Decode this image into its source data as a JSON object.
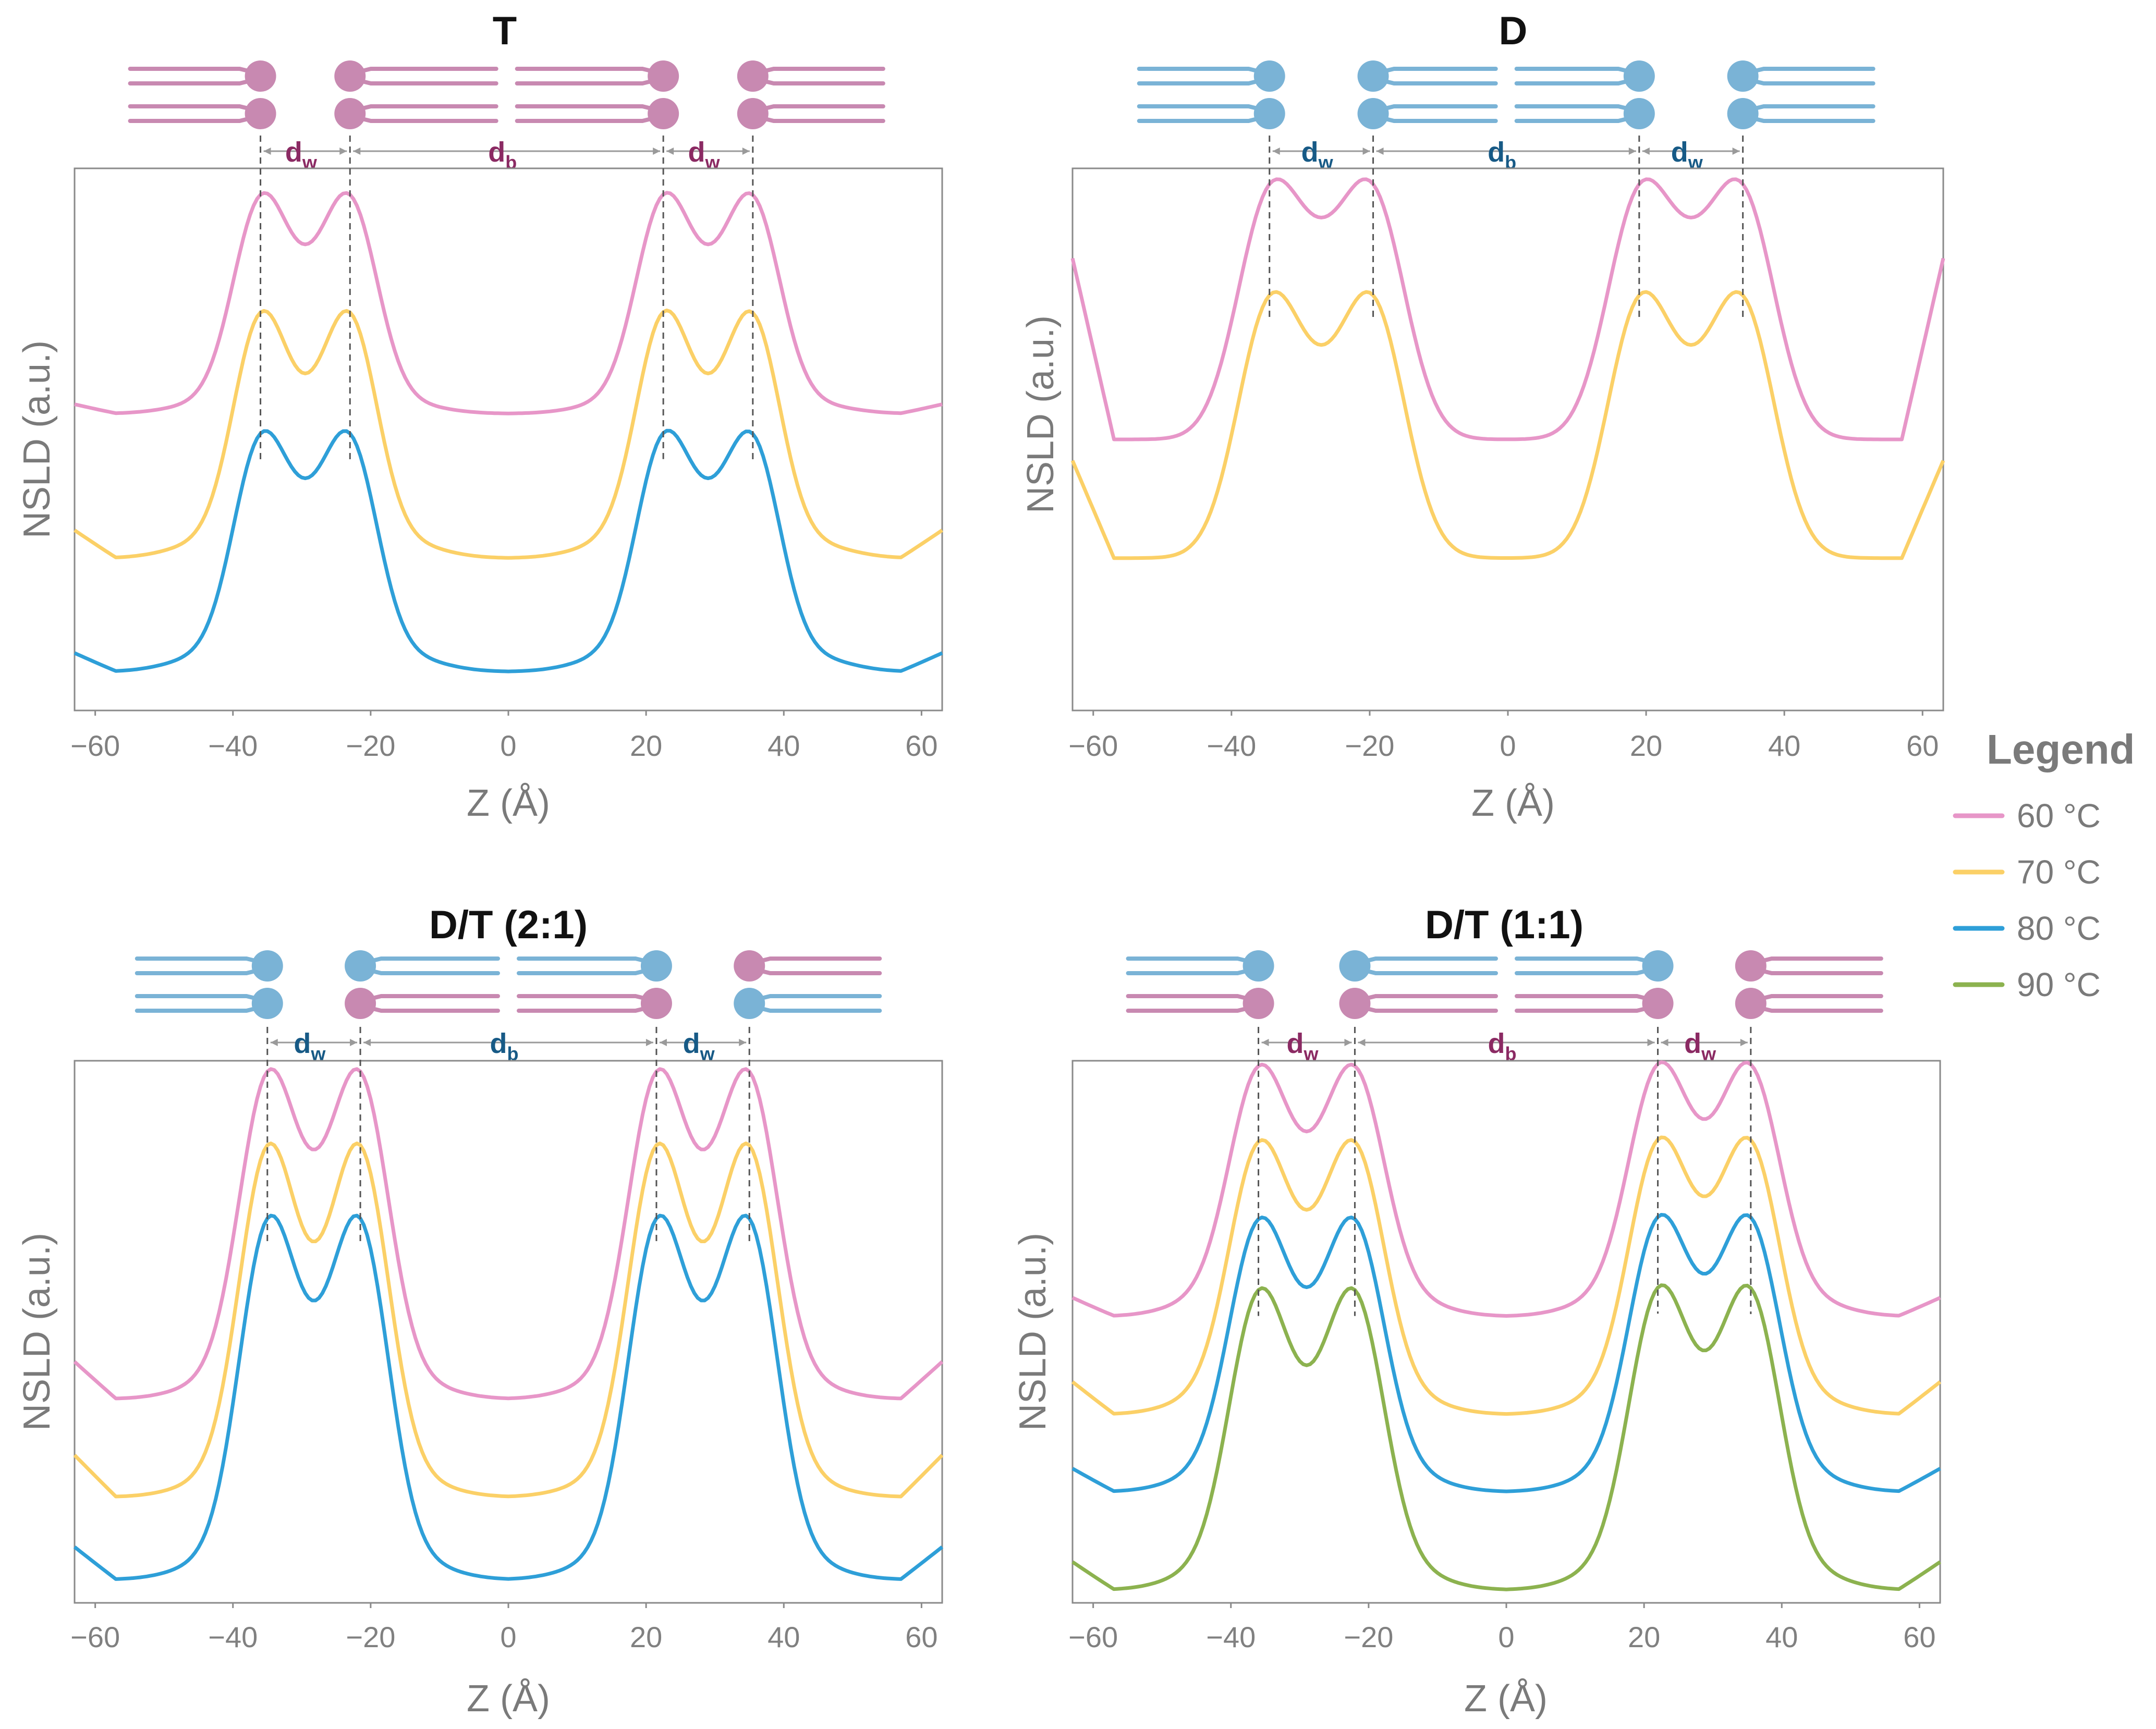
{
  "colors": {
    "c60": "#e796c8",
    "c70": "#fbd067",
    "c80": "#2e9fd8",
    "c90": "#8cb24f",
    "axis": "#8a8a8a",
    "T": "#c889b1",
    "D": "#7ab3d6",
    "dimT": "#8b2a63",
    "dimD": "#175a86"
  },
  "legend": {
    "title": "Legend",
    "entries": [
      {
        "label": "60 °C",
        "color": "#e796c8"
      },
      {
        "label": "70 °C",
        "color": "#fbd067"
      },
      {
        "label": "80 °C",
        "color": "#2e9fd8"
      },
      {
        "label": "90 °C",
        "color": "#8cb24f"
      }
    ]
  },
  "chart_data": [
    {
      "type": "line",
      "title": "T",
      "xlabel": "Z (Å)",
      "ylabel": "NSLD (a.u.)",
      "xlim": [
        -63,
        63
      ],
      "ylim": [
        0,
        100
      ],
      "xticks": [
        "−60",
        "−40",
        "−20",
        "0",
        "20",
        "40",
        "60"
      ],
      "xtick_values": [
        -60,
        -40,
        -20,
        0,
        20,
        40,
        60
      ],
      "dimension_labels": {
        "dw": "d",
        "dw_sub": "w",
        "db": "d",
        "db_sub": "b",
        "color": "dimT"
      },
      "head_positions": [
        -36,
        -23,
        22.5,
        35.5
      ],
      "series": [
        {
          "name": "60 °C",
          "color": "#e796c8",
          "peak": 95,
          "dip": 89,
          "min_center": 55,
          "min_outer": 55,
          "shoulder": 61,
          "end": 57
        },
        {
          "name": "70 °C",
          "color": "#fbd067",
          "peak": 72,
          "dip": 64,
          "min_center": 27,
          "min_outer": 27,
          "shoulder": 36,
          "end": 33
        },
        {
          "name": "80 °C",
          "color": "#2e9fd8",
          "peak": 48,
          "dip": 44,
          "min_center": 5,
          "min_outer": 5,
          "shoulder": 14,
          "end": 9
        }
      ]
    },
    {
      "type": "line",
      "title": "D",
      "xlabel": "Z (Å)",
      "ylabel": "NSLD (a.u.)",
      "xlim": [
        -63,
        63
      ],
      "ylim": [
        0,
        100
      ],
      "xticks": [
        "−60",
        "−40",
        "−20",
        "0",
        "20",
        "40",
        "60"
      ],
      "xtick_values": [
        -60,
        -40,
        -20,
        0,
        20,
        40,
        60
      ],
      "dimension_labels": {
        "dw": "d",
        "dw_sub": "w",
        "db": "d",
        "db_sub": "b",
        "color": "dimD"
      },
      "head_positions": [
        -34.5,
        -19.5,
        19,
        34
      ],
      "series": [
        {
          "name": "60 °C",
          "color": "#e796c8",
          "peak": 96,
          "dip": 95,
          "min_center": 50,
          "min_outer": 50,
          "shoulder": 50,
          "end": 89
        },
        {
          "name": "70 °C",
          "color": "#fbd067",
          "peak": 75,
          "dip": 70,
          "min_center": 27,
          "min_outer": 27,
          "shoulder": 27,
          "end": 48
        }
      ]
    },
    {
      "type": "line",
      "title": "D/T (2:1)",
      "xlabel": "Z (Å)",
      "ylabel": "NSLD (a.u.)",
      "xlim": [
        -63,
        63
      ],
      "ylim": [
        0,
        100
      ],
      "xticks": [
        "−60",
        "−40",
        "−20",
        "0",
        "20",
        "40",
        "60"
      ],
      "xtick_values": [
        -60,
        -40,
        -20,
        0,
        20,
        40,
        60
      ],
      "dimension_labels": {
        "dw": "d",
        "dw_sub": "w",
        "db": "d",
        "db_sub": "b",
        "color": "dimD"
      },
      "head_positions": [
        -35,
        -21.5,
        21.5,
        35
      ],
      "series": [
        {
          "name": "60 °C",
          "color": "#e796c8",
          "peak": 97,
          "dip": 87,
          "min_center": 37,
          "min_outer": 37,
          "shoulder": 46,
          "end": 45
        },
        {
          "name": "70 °C",
          "color": "#fbd067",
          "peak": 83,
          "dip": 69,
          "min_center": 18,
          "min_outer": 18,
          "shoulder": 27,
          "end": 27
        },
        {
          "name": "80 °C",
          "color": "#2e9fd8",
          "peak": 68,
          "dip": 58,
          "min_center": 2,
          "min_outer": 2,
          "shoulder": 12,
          "end": 9
        }
      ]
    },
    {
      "type": "line",
      "title": "D/T (1:1)",
      "xlabel": "Z (Å)",
      "ylabel": "NSLD (a.u.)",
      "xlim": [
        -63,
        63
      ],
      "ylim": [
        0,
        100
      ],
      "xticks": [
        "−60",
        "−40",
        "−20",
        "0",
        "20",
        "40",
        "60"
      ],
      "xtick_values": [
        -60,
        -40,
        -20,
        0,
        20,
        40,
        60
      ],
      "dimension_labels": {
        "dw": "d",
        "dw_sub": "w",
        "db": "d",
        "db_sub": "b",
        "color": "dimT"
      },
      "head_positions": [
        -36,
        -22,
        22,
        35.5
      ],
      "series": [
        {
          "name": "60 °C",
          "color": "#e796c8",
          "peak": 99,
          "dip": 90,
          "min_center": 53,
          "min_outer": 53,
          "shoulder": 62,
          "end": 57
        },
        {
          "name": "70 °C",
          "color": "#fbd067",
          "peak": 84,
          "dip": 75,
          "min_center": 34,
          "min_outer": 34,
          "shoulder": 43,
          "end": 41
        },
        {
          "name": "80 °C",
          "color": "#2e9fd8",
          "peak": 69,
          "dip": 60,
          "min_center": 19,
          "min_outer": 19,
          "shoulder": 28,
          "end": 24
        },
        {
          "name": "90 °C",
          "color": "#8cb24f",
          "peak": 55,
          "dip": 45,
          "min_center": 0,
          "min_outer": 0,
          "shoulder": 10,
          "end": 6
        }
      ]
    }
  ]
}
